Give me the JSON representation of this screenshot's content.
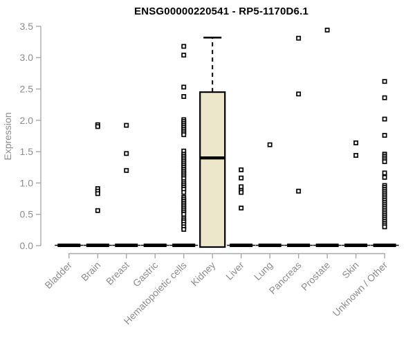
{
  "chart_data": {
    "type": "boxplot",
    "title": "ENSG00000220541 - RP5-1170D6.1",
    "ylabel": "Expression",
    "ylim": [
      0,
      3.5
    ],
    "yticks": [
      "0.0",
      "0.5",
      "1.0",
      "1.5",
      "2.0",
      "2.5",
      "3.0",
      "3.5"
    ],
    "grid": "off",
    "legend": "none",
    "categories": [
      "Bladder",
      "Brain",
      "Breast",
      "Gastric",
      "Hematopoietic cells",
      "Kidney",
      "Liver",
      "Lung",
      "Pancreas",
      "Prostate",
      "Skin",
      "Unknown / Other"
    ],
    "boxes": [
      {
        "name": "Bladder",
        "q1": 0,
        "median": 0,
        "q3": 0,
        "whisker_low": 0,
        "whisker_high": 0,
        "points": []
      },
      {
        "name": "Brain",
        "q1": 0,
        "median": 0,
        "q3": 0,
        "whisker_low": 0,
        "whisker_high": 0,
        "points": [
          1.93,
          1.9,
          0.91,
          0.87,
          0.83,
          0.56
        ]
      },
      {
        "name": "Breast",
        "q1": 0,
        "median": 0,
        "q3": 0,
        "whisker_low": 0,
        "whisker_high": 0,
        "points": [
          1.92,
          1.47,
          1.2
        ]
      },
      {
        "name": "Gastric",
        "q1": 0,
        "median": 0,
        "q3": 0,
        "whisker_low": 0,
        "whisker_high": 0,
        "points": []
      },
      {
        "name": "Hematopoietic cells",
        "q1": 0,
        "median": 0,
        "q3": 0,
        "whisker_low": 0,
        "whisker_high": 0,
        "points": [
          3.18,
          3.04,
          2.53,
          2.38,
          2.01,
          1.98,
          1.95,
          1.92,
          1.89,
          1.86,
          1.83,
          1.8,
          1.77,
          1.51,
          1.46,
          1.43,
          1.4,
          1.37,
          1.34,
          1.31,
          1.28,
          1.25,
          1.22,
          1.19,
          1.16,
          1.13,
          1.1,
          1.07,
          1.02,
          0.99,
          0.96,
          0.93,
          0.9,
          0.85,
          0.77,
          0.74,
          0.71,
          0.68,
          0.65,
          0.62,
          0.59,
          0.56,
          0.53,
          0.5,
          0.44,
          0.41,
          0.38,
          0.34,
          0.3,
          0.26
        ]
      },
      {
        "name": "Kidney",
        "q1": 0,
        "median": 1.4,
        "q3": 2.45,
        "whisker_low": 0,
        "whisker_high": 3.32,
        "points": []
      },
      {
        "name": "Liver",
        "q1": 0,
        "median": 0,
        "q3": 0,
        "whisker_low": 0,
        "whisker_high": 0,
        "points": [
          1.21,
          1.08,
          0.94,
          0.88,
          0.85,
          0.6
        ]
      },
      {
        "name": "Lung",
        "q1": 0,
        "median": 0,
        "q3": 0,
        "whisker_low": 0,
        "whisker_high": 0,
        "points": [
          1.61
        ]
      },
      {
        "name": "Pancreas",
        "q1": 0,
        "median": 0,
        "q3": 0,
        "whisker_low": 0,
        "whisker_high": 0,
        "points": [
          3.31,
          2.42,
          0.87
        ]
      },
      {
        "name": "Prostate",
        "q1": 0,
        "median": 0,
        "q3": 0,
        "whisker_low": 0,
        "whisker_high": 0,
        "points": [
          3.44
        ]
      },
      {
        "name": "Skin",
        "q1": 0,
        "median": 0,
        "q3": 0,
        "whisker_low": 0,
        "whisker_high": 0,
        "points": [
          1.64,
          1.44
        ]
      },
      {
        "name": "Unknown / Other",
        "q1": 0,
        "median": 0,
        "q3": 0,
        "whisker_low": 0,
        "whisker_high": 0,
        "points": [
          2.62,
          2.36,
          2.02,
          1.76,
          1.46,
          1.43,
          1.4,
          1.37,
          1.34,
          1.16,
          1.09,
          0.96,
          0.93,
          0.9,
          0.87,
          0.84,
          0.81,
          0.78,
          0.75,
          0.72,
          0.69,
          0.66,
          0.63,
          0.6,
          0.57,
          0.54,
          0.51,
          0.48,
          0.45,
          0.42,
          0.39,
          0.36,
          0.33,
          0.3
        ]
      }
    ],
    "colors": {
      "box_fill": "#ECE7CA",
      "box_stroke": "#000000",
      "median": "#000000",
      "point_stroke": "#000000",
      "point_fill": "#ffffff",
      "axis_line": "#a8a8a8",
      "axis_text": "#8c8c8c",
      "title": "#000000",
      "background": "#ffffff"
    }
  }
}
